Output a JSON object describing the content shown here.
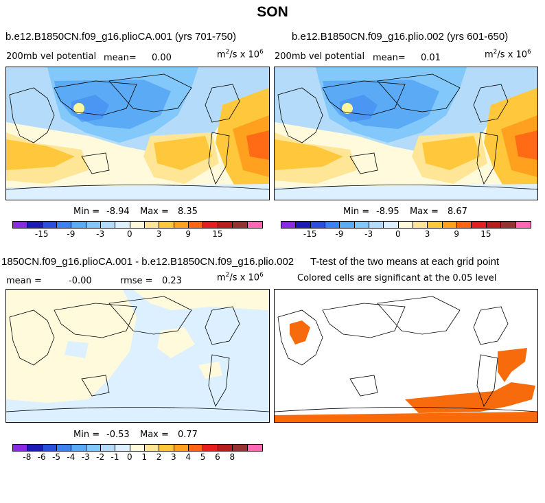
{
  "title": "SON",
  "panels": {
    "p1": {
      "title": "b.e12.B1850CN.f09_g16.plioCA.001 (yrs 701-750)",
      "var_label": "200mb vel potential",
      "mean_label": "mean=",
      "mean_value": "0.00",
      "units_base": "m",
      "units_exp1": "2",
      "units_mid": "/s x 10",
      "units_exp2": "6",
      "min_label": "Min =",
      "min_value": "-8.94",
      "max_label": "Max =",
      "max_value": "8.35"
    },
    "p2": {
      "title": "b.e12.B1850CN.f09_g16.plio.002 (yrs 601-650)",
      "var_label": "200mb vel potential",
      "mean_label": "mean=",
      "mean_value": "0.01",
      "units_base": "m",
      "units_exp1": "2",
      "units_mid": "/s x 10",
      "units_exp2": "6",
      "min_label": "Min =",
      "min_value": "-8.95",
      "max_label": "Max =",
      "max_value": "8.67"
    },
    "p3": {
      "title": "1850CN.f09_g16.plioCA.001 - b.e12.B1850CN.f09_g16.plio.002",
      "mean_label": "mean =",
      "mean_value": "-0.00",
      "rmse_label": "rmse =",
      "rmse_value": "0.23",
      "units_base": "m",
      "units_exp1": "2",
      "units_mid": "/s x 10",
      "units_exp2": "6",
      "min_label": "Min =",
      "min_value": "-0.53",
      "max_label": "Max =",
      "max_value": "0.77"
    },
    "p4": {
      "title": "T-test of the two means at each grid point",
      "subtitle": "Colored cells are significant at the 0.05 level"
    }
  },
  "colorbar_main": {
    "colors": [
      "#8a2be2",
      "#1c1cb4",
      "#2850d8",
      "#3c82f0",
      "#5aaaf5",
      "#82c8fa",
      "#b4dcfa",
      "#dcf0ff",
      "#fffadc",
      "#ffe696",
      "#ffc83c",
      "#ffa01e",
      "#ff6414",
      "#e61e1e",
      "#b41e1e",
      "#963232",
      "#ff69b4"
    ],
    "tick_labels": [
      "-15",
      "-9",
      "-3",
      "0",
      "3",
      "9",
      "15"
    ]
  },
  "colorbar_diff": {
    "colors": [
      "#8a2be2",
      "#1c1cb4",
      "#2850d8",
      "#3c82f0",
      "#5aaaf5",
      "#82c8fa",
      "#b4dcfa",
      "#dcf0ff",
      "#fffadc",
      "#ffe696",
      "#ffc83c",
      "#ffa01e",
      "#ff6414",
      "#e61e1e",
      "#b41e1e",
      "#963232",
      "#ff69b4"
    ],
    "tick_labels": [
      "-8",
      "-6",
      "-5",
      "-4",
      "-3",
      "-2",
      "-1",
      "0",
      "1",
      "2",
      "3",
      "4",
      "5",
      "6",
      "8"
    ]
  }
}
